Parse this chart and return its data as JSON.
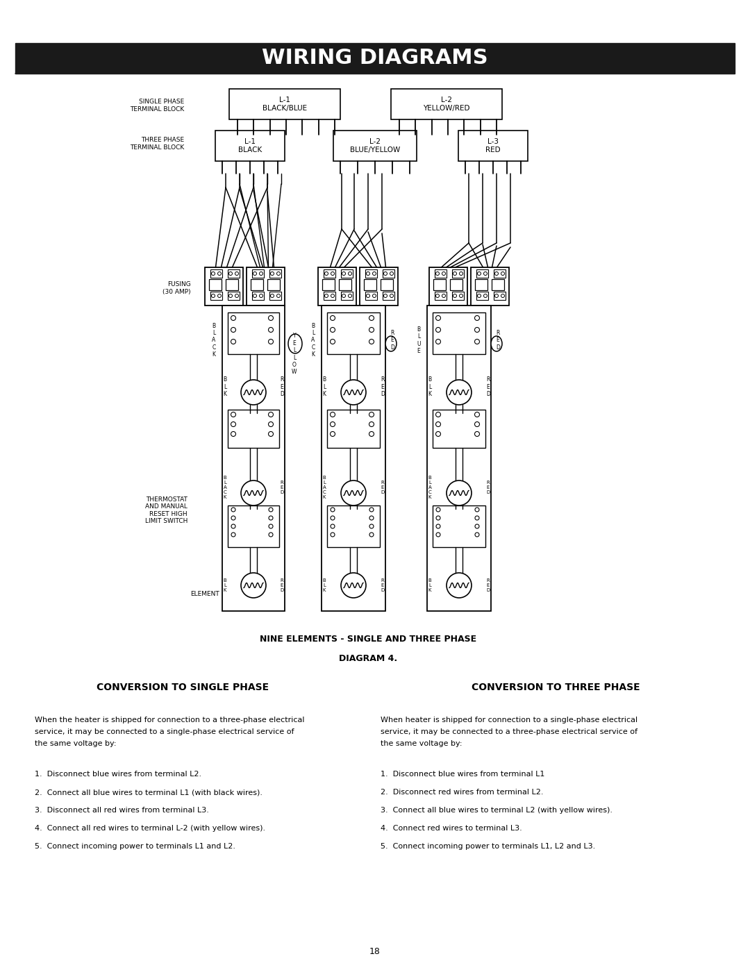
{
  "title": "WIRING DIAGRAMS",
  "title_bg": "#1a1a1a",
  "title_color": "#ffffff",
  "title_fontsize": 20,
  "page_bg": "#ffffff",
  "diagram_label": "NINE ELEMENTS - SINGLE AND THREE PHASE",
  "diagram_num": "DIAGRAM 4.",
  "conversion_single_title": "CONVERSION TO SINGLE PHASE",
  "conversion_three_title": "CONVERSION TO THREE PHASE",
  "conversion_single_intro": "When the heater is shipped for connection to a three-phase electrical\nservice, it may be connected to a single-phase electrical service of\nthe same voltage by:",
  "conversion_three_intro": "When heater is shipped for connection to a single-phase electrical\nservice, it may be connected to a three-phase electrical service of\nthe same voltage by:",
  "single_steps": [
    "1.  Disconnect blue wires from terminal L2.",
    "2.  Connect all blue wires to terminal L1 (with black wires).",
    "3.  Disconnect all red wires from terminal L3.",
    "4.  Connect all red wires to terminal L-2 (with yellow wires).",
    "5.  Connect incoming power to terminals L1 and L2."
  ],
  "three_steps": [
    "1.  Disconnect blue wires from terminal L1",
    "2.  Disconnect red wires from terminal L2.",
    "3.  Connect all blue wires to terminal L2 (with yellow wires).",
    "4.  Connect red wires to terminal L3.",
    "5.  Connect incoming power to terminals L1, L2 and L3."
  ],
  "page_number": "18"
}
